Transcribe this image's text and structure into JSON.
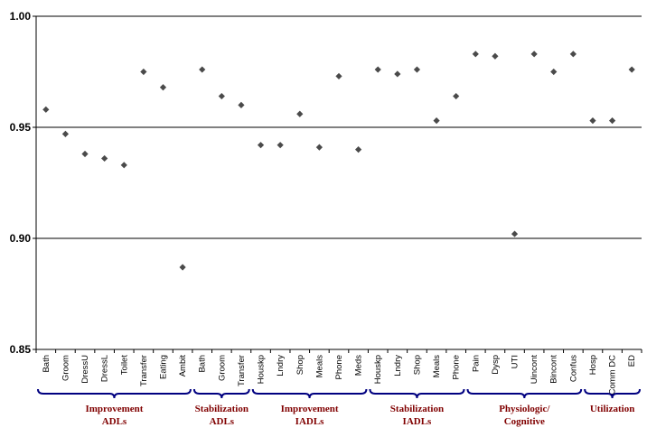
{
  "chart_data": {
    "type": "scatter",
    "title": "",
    "xlabel": "",
    "ylabel": "",
    "ylim": [
      0.85,
      1.0
    ],
    "yticks": [
      "0.85",
      "0.90",
      "0.95",
      "1.00"
    ],
    "grid": "horizontal",
    "legend": "none",
    "colors": {
      "marker": "#4a4a4a",
      "axis": "#000000",
      "gridline": "#000000",
      "bracket": "#000080",
      "group_label": "#800000"
    },
    "categories": [
      "Bath",
      "Groom",
      "DressU",
      "DressL",
      "Toilet",
      "Transfer",
      "Eating",
      "Ambit",
      "Bath",
      "Groom",
      "Transfer",
      "Houskp",
      "Lndry",
      "Shop",
      "Meals",
      "Phone",
      "Meds",
      "Houskp",
      "Lndry",
      "Shop",
      "Meals",
      "Phone",
      "Pain",
      "Dysp",
      "UTI",
      "Uincont",
      "Bincont",
      "Confus",
      "Hosp",
      "Comm DC",
      "ED"
    ],
    "values": [
      0.958,
      0.947,
      0.938,
      0.936,
      0.933,
      0.975,
      0.968,
      0.887,
      0.976,
      0.964,
      0.96,
      0.942,
      0.942,
      0.956,
      0.941,
      0.973,
      0.94,
      0.976,
      0.974,
      0.976,
      0.953,
      0.964,
      0.983,
      0.982,
      0.902,
      0.983,
      0.975,
      0.983,
      0.953,
      0.953,
      0.976
    ],
    "groups": [
      {
        "lines": [
          "Improvement",
          "ADLs"
        ],
        "start": 0,
        "end": 7
      },
      {
        "lines": [
          "Stabilization",
          "ADLs"
        ],
        "start": 8,
        "end": 10
      },
      {
        "lines": [
          "Improvement",
          "IADLs"
        ],
        "start": 11,
        "end": 16
      },
      {
        "lines": [
          "Stabilization",
          "IADLs"
        ],
        "start": 17,
        "end": 21
      },
      {
        "lines": [
          "Physiologic/",
          "Cognitive"
        ],
        "start": 22,
        "end": 27
      },
      {
        "lines": [
          "Utilization"
        ],
        "start": 28,
        "end": 30
      }
    ]
  }
}
